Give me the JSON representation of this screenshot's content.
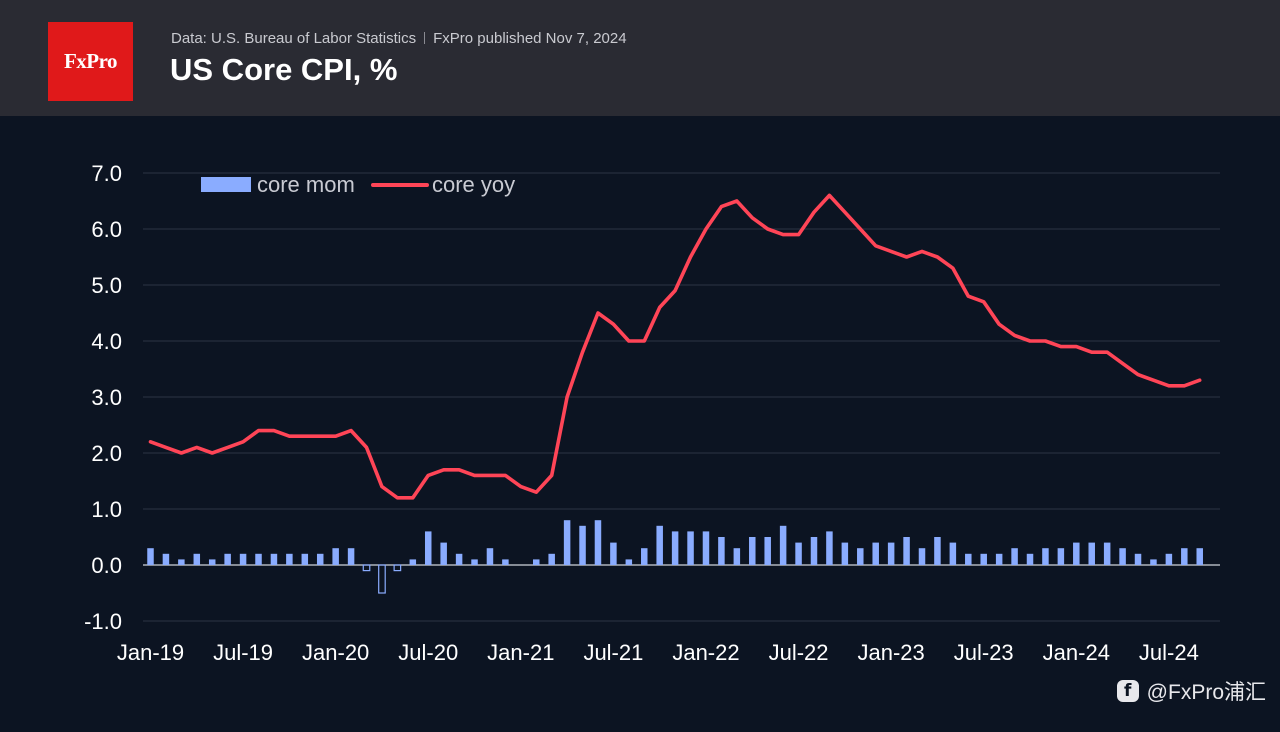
{
  "header": {
    "source_text": "Data: U.S. Bureau of Labor Statistics",
    "published_text": "FxPro published Nov 7, 2024",
    "title": "US Core CPI, %",
    "logo_text": "FxPro"
  },
  "watermark": {
    "icon": "brand-f-icon",
    "text": "@FxPro浦汇"
  },
  "colors": {
    "bar": "#8aacff",
    "line": "#ff4557",
    "grid": "#2b3344",
    "text": "#ffffff"
  },
  "chart_data": {
    "type": "bar+line",
    "title": "US Core CPI, %",
    "x_ticks": [
      "Jan-19",
      "Jul-19",
      "Jan-20",
      "Jul-20",
      "Jan-21",
      "Jul-21",
      "Jan-22",
      "Jul-22",
      "Jan-23",
      "Jul-23",
      "Jan-24",
      "Jul-24"
    ],
    "y_ticks": [
      "7.0",
      "6.0",
      "5.0",
      "4.0",
      "3.0",
      "2.0",
      "1.0",
      "0.0",
      "-1.0"
    ],
    "ylim": [
      -1.0,
      7.0
    ],
    "grid": true,
    "legend_position": "top-left",
    "start_month": "Jan-19",
    "series": [
      {
        "name": "core mom",
        "type": "bar",
        "values": [
          0.3,
          0.2,
          0.1,
          0.2,
          0.1,
          0.2,
          0.2,
          0.2,
          0.2,
          0.2,
          0.2,
          0.2,
          0.3,
          0.3,
          -0.1,
          -0.5,
          -0.1,
          0.1,
          0.6,
          0.4,
          0.2,
          0.1,
          0.3,
          0.1,
          0.0,
          0.1,
          0.2,
          0.8,
          0.7,
          0.8,
          0.4,
          0.1,
          0.3,
          0.7,
          0.6,
          0.6,
          0.6,
          0.5,
          0.3,
          0.5,
          0.5,
          0.7,
          0.4,
          0.5,
          0.6,
          0.4,
          0.3,
          0.4,
          0.4,
          0.5,
          0.3,
          0.5,
          0.4,
          0.2,
          0.2,
          0.2,
          0.3,
          0.2,
          0.3,
          0.3,
          0.4,
          0.4,
          0.4,
          0.3,
          0.2,
          0.1,
          0.2,
          0.3,
          0.3
        ]
      },
      {
        "name": "core yoy",
        "type": "line",
        "values": [
          2.2,
          2.1,
          2.0,
          2.1,
          2.0,
          2.1,
          2.2,
          2.4,
          2.4,
          2.3,
          2.3,
          2.3,
          2.3,
          2.4,
          2.1,
          1.4,
          1.2,
          1.2,
          1.6,
          1.7,
          1.7,
          1.6,
          1.6,
          1.6,
          1.4,
          1.3,
          1.6,
          3.0,
          3.8,
          4.5,
          4.3,
          4.0,
          4.0,
          4.6,
          4.9,
          5.5,
          6.0,
          6.4,
          6.5,
          6.2,
          6.0,
          5.9,
          5.9,
          6.3,
          6.6,
          6.3,
          6.0,
          5.7,
          5.6,
          5.5,
          5.6,
          5.5,
          5.3,
          4.8,
          4.7,
          4.3,
          4.1,
          4.0,
          4.0,
          3.9,
          3.9,
          3.8,
          3.8,
          3.6,
          3.4,
          3.3,
          3.2,
          3.2,
          3.3
        ]
      }
    ]
  }
}
